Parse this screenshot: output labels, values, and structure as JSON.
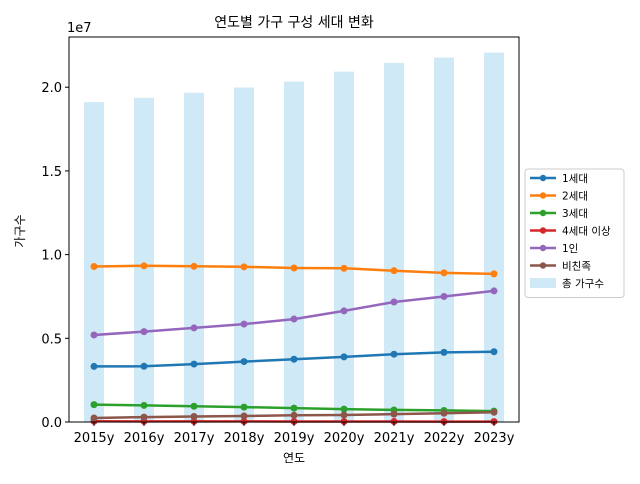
{
  "chart_data": {
    "type": "bar",
    "title": "연도별 가구 구성 세대 변화",
    "xlabel": "연도",
    "ylabel": "가구수",
    "y_offset_label": "1e7",
    "categories": [
      "2015y",
      "2016y",
      "2017y",
      "2018y",
      "2019y",
      "2020y",
      "2021y",
      "2022y",
      "2023y"
    ],
    "ylim": [
      0,
      23000000
    ],
    "yticks": [
      {
        "value": 0,
        "label": "0.0"
      },
      {
        "value": 5000000,
        "label": "0.5"
      },
      {
        "value": 10000000,
        "label": "1.0"
      },
      {
        "value": 15000000,
        "label": "1.5"
      },
      {
        "value": 20000000,
        "label": "2.0"
      }
    ],
    "grid": false,
    "legend_position": "right",
    "bar_series": {
      "name": "총 가구수",
      "color": "#d0e9f6",
      "values": [
        19110000,
        19370000,
        19670000,
        19980000,
        20340000,
        20930000,
        21450000,
        21770000,
        22070000
      ]
    },
    "series": [
      {
        "name": "1세대",
        "type": "line",
        "color": "#1f77b4",
        "values": [
          3320000,
          3330000,
          3460000,
          3610000,
          3750000,
          3890000,
          4050000,
          4160000,
          4200000
        ]
      },
      {
        "name": "2세대",
        "type": "line",
        "color": "#ff7f0e",
        "values": [
          9290000,
          9330000,
          9300000,
          9270000,
          9200000,
          9180000,
          9040000,
          8910000,
          8850000
        ]
      },
      {
        "name": "3세대",
        "type": "line",
        "color": "#2ca02c",
        "values": [
          1040000,
          990000,
          940000,
          890000,
          830000,
          770000,
          720000,
          690000,
          650000
        ]
      },
      {
        "name": "4세대 이상",
        "type": "line",
        "color": "#d62728",
        "values": [
          40000,
          38000,
          35000,
          33000,
          31000,
          29000,
          27000,
          26000,
          25000
        ]
      },
      {
        "name": "1인",
        "type": "line",
        "color": "#9467bd",
        "values": [
          5200000,
          5400000,
          5620000,
          5850000,
          6150000,
          6640000,
          7170000,
          7500000,
          7830000
        ]
      },
      {
        "name": "비친족",
        "type": "line",
        "color": "#8c564b",
        "values": [
          240000,
          290000,
          330000,
          360000,
          400000,
          420000,
          470000,
          520000,
          580000
        ]
      }
    ]
  }
}
